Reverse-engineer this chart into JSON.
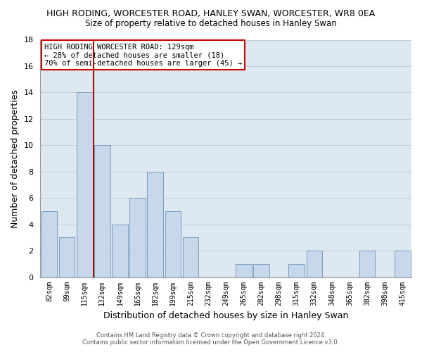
{
  "title": "HIGH RODING, WORCESTER ROAD, HANLEY SWAN, WORCESTER, WR8 0EA",
  "subtitle": "Size of property relative to detached houses in Hanley Swan",
  "xlabel": "Distribution of detached houses by size in Hanley Swan",
  "ylabel": "Number of detached properties",
  "bar_color": "#c8d8ec",
  "bar_edge_color": "#7a9cbf",
  "background_color": "#ffffff",
  "ax_bg_color": "#dde8f0",
  "grid_color": "#c0cdd8",
  "categories": [
    "82sqm",
    "99sqm",
    "115sqm",
    "132sqm",
    "149sqm",
    "165sqm",
    "182sqm",
    "199sqm",
    "215sqm",
    "232sqm",
    "249sqm",
    "265sqm",
    "282sqm",
    "298sqm",
    "315sqm",
    "332sqm",
    "348sqm",
    "365sqm",
    "382sqm",
    "398sqm",
    "415sqm"
  ],
  "values": [
    5,
    3,
    14,
    10,
    4,
    6,
    8,
    5,
    3,
    0,
    0,
    1,
    1,
    0,
    1,
    2,
    0,
    0,
    2,
    0,
    2
  ],
  "ylim": [
    0,
    18
  ],
  "yticks": [
    0,
    2,
    4,
    6,
    8,
    10,
    12,
    14,
    16,
    18
  ],
  "property_line_index": 2,
  "property_line_color": "#aa0000",
  "annotation_line1": "HIGH RODING WORCESTER ROAD: 129sqm",
  "annotation_line2": "← 28% of detached houses are smaller (18)",
  "annotation_line3": "70% of semi-detached houses are larger (45) →",
  "footer_line1": "Contains HM Land Registry data © Crown copyright and database right 2024.",
  "footer_line2": "Contains public sector information licensed under the Open Government Licence v3.0."
}
